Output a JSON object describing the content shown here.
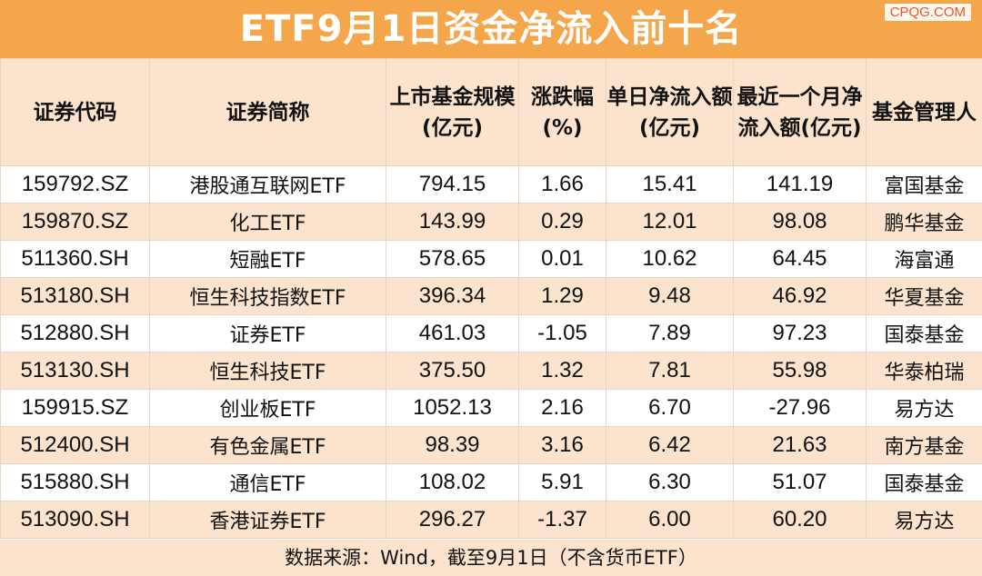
{
  "header": {
    "title": "ETF9月1日资金净流入前十名",
    "brand": "CPQG.COM"
  },
  "colors": {
    "title_bg": "#f6a64a",
    "header_bg": "#fbe3cd",
    "stripe_bg": "#fbe3cd",
    "row_bg": "#ffffff",
    "brand_text": "#e4572e"
  },
  "table": {
    "columns": [
      "证券代码",
      "证券简称",
      "上市基金规模(亿元)",
      "涨跌幅(%)",
      "单日净流入额(亿元)",
      "最近一个月净流入额(亿元)",
      "基金管理人"
    ],
    "rows": [
      [
        "159792.SZ",
        "港股通互联网ETF",
        "794.15",
        "1.66",
        "15.41",
        "141.19",
        "富国基金"
      ],
      [
        "159870.SZ",
        "化工ETF",
        "143.99",
        "0.29",
        "12.01",
        "98.08",
        "鹏华基金"
      ],
      [
        "511360.SH",
        "短融ETF",
        "578.65",
        "0.01",
        "10.62",
        "64.45",
        "海富通"
      ],
      [
        "513180.SH",
        "恒生科技指数ETF",
        "396.34",
        "1.29",
        "9.48",
        "46.92",
        "华夏基金"
      ],
      [
        "512880.SH",
        "证券ETF",
        "461.03",
        "-1.05",
        "7.89",
        "97.23",
        "国泰基金"
      ],
      [
        "513130.SH",
        "恒生科技ETF",
        "375.50",
        "1.32",
        "7.81",
        "55.98",
        "华泰柏瑞"
      ],
      [
        "159915.SZ",
        "创业板ETF",
        "1052.13",
        "2.16",
        "6.70",
        "-27.96",
        "易方达"
      ],
      [
        "512400.SH",
        "有色金属ETF",
        "98.39",
        "3.16",
        "6.42",
        "21.63",
        "南方基金"
      ],
      [
        "515880.SH",
        "通信ETF",
        "108.02",
        "5.91",
        "6.30",
        "51.07",
        "国泰基金"
      ],
      [
        "513090.SH",
        "香港证券ETF",
        "296.27",
        "-1.37",
        "6.00",
        "60.20",
        "易方达"
      ]
    ]
  },
  "footer": {
    "source": "数据来源：Wind，截至9月1日（不含货币ETF）"
  }
}
